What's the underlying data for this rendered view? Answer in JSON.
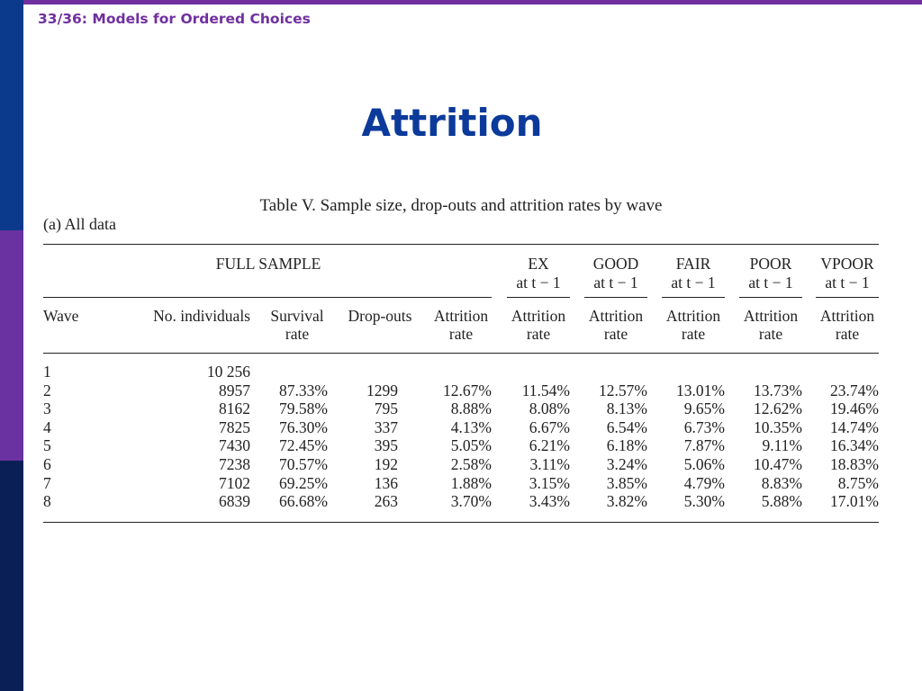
{
  "slide": {
    "header": "33/36:  Models for Ordered Choices",
    "title": "Attrition"
  },
  "document": {
    "caption": "Table V. Sample size, drop-outs and attrition rates by wave",
    "subtitle": "(a)  All data",
    "group_headers": {
      "full_sample": "FULL SAMPLE",
      "ex": "EX",
      "good": "GOOD",
      "fair": "FAIR",
      "poor": "POOR",
      "vpoor": "VPOOR",
      "prev": "at t − 1"
    },
    "columns": [
      "Wave",
      "No. individuals",
      "Survival",
      "rate",
      "Drop-outs",
      "Attrition",
      "rate"
    ],
    "rows": [
      [
        "1",
        "10 256",
        "",
        "",
        "",
        "",
        "",
        "",
        "",
        ""
      ],
      [
        "2",
        "8957",
        "87.33%",
        "1299",
        "12.67%",
        "11.54%",
        "12.57%",
        "13.01%",
        "13.73%",
        "23.74%"
      ],
      [
        "3",
        "8162",
        "79.58%",
        "795",
        "8.88%",
        "8.08%",
        "8.13%",
        "9.65%",
        "12.62%",
        "19.46%"
      ],
      [
        "4",
        "7825",
        "76.30%",
        "337",
        "4.13%",
        "6.67%",
        "6.54%",
        "6.73%",
        "10.35%",
        "14.74%"
      ],
      [
        "5",
        "7430",
        "72.45%",
        "395",
        "5.05%",
        "6.21%",
        "6.18%",
        "7.87%",
        "9.11%",
        "16.34%"
      ],
      [
        "6",
        "7238",
        "70.57%",
        "192",
        "2.58%",
        "3.11%",
        "3.24%",
        "5.06%",
        "10.47%",
        "18.83%"
      ],
      [
        "7",
        "7102",
        "69.25%",
        "136",
        "1.88%",
        "3.15%",
        "3.85%",
        "4.79%",
        "8.83%",
        "8.75%"
      ],
      [
        "8",
        "6839",
        "66.68%",
        "263",
        "3.70%",
        "3.43%",
        "3.82%",
        "5.30%",
        "5.88%",
        "17.01%"
      ]
    ]
  }
}
